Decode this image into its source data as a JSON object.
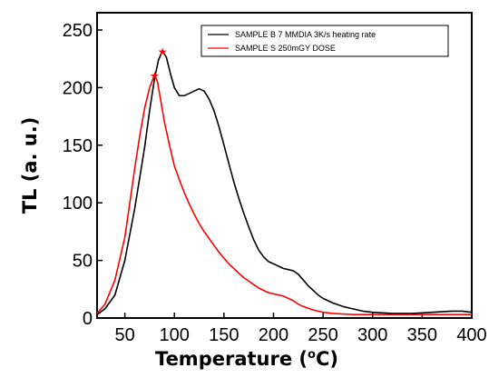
{
  "chart_data": {
    "type": "line",
    "xlabel_main": "Temperature (",
    "xlabel_sup": "o",
    "xlabel_unit": "C)",
    "ylabel": "TL (a. u.)",
    "xlim": [
      22,
      400
    ],
    "ylim": [
      0,
      265
    ],
    "x_ticks": [
      50,
      100,
      150,
      200,
      250,
      300,
      350,
      400
    ],
    "y_ticks": [
      0,
      50,
      100,
      150,
      200,
      250
    ],
    "x_tick_labels": [
      "50",
      "100",
      "150",
      "200",
      "250",
      "300",
      "350",
      "400"
    ],
    "y_tick_labels": [
      "0",
      "50",
      "100",
      "150",
      "200",
      "250"
    ],
    "legend_position": "top-right",
    "series": [
      {
        "name": "SAMPLE B 7 MMDIA 3K/s heating rate",
        "color": "#000000",
        "peak": [
          88,
          232
        ],
        "points": [
          [
            22,
            3
          ],
          [
            30,
            8
          ],
          [
            40,
            20
          ],
          [
            50,
            50
          ],
          [
            60,
            95
          ],
          [
            70,
            148
          ],
          [
            75,
            180
          ],
          [
            80,
            208
          ],
          [
            84,
            224
          ],
          [
            88,
            232
          ],
          [
            92,
            226
          ],
          [
            96,
            212
          ],
          [
            100,
            200
          ],
          [
            105,
            193
          ],
          [
            110,
            193
          ],
          [
            115,
            195
          ],
          [
            120,
            197
          ],
          [
            125,
            199
          ],
          [
            130,
            197
          ],
          [
            135,
            190
          ],
          [
            140,
            180
          ],
          [
            145,
            166
          ],
          [
            150,
            150
          ],
          [
            155,
            134
          ],
          [
            160,
            118
          ],
          [
            165,
            104
          ],
          [
            170,
            91
          ],
          [
            175,
            79
          ],
          [
            180,
            68
          ],
          [
            185,
            59
          ],
          [
            190,
            53
          ],
          [
            195,
            49
          ],
          [
            200,
            47
          ],
          [
            205,
            45
          ],
          [
            210,
            43
          ],
          [
            215,
            42
          ],
          [
            220,
            41
          ],
          [
            225,
            38
          ],
          [
            230,
            33
          ],
          [
            235,
            28
          ],
          [
            240,
            24
          ],
          [
            245,
            20
          ],
          [
            250,
            17
          ],
          [
            260,
            13
          ],
          [
            270,
            10
          ],
          [
            280,
            8
          ],
          [
            290,
            6
          ],
          [
            300,
            5
          ],
          [
            320,
            4
          ],
          [
            340,
            4
          ],
          [
            360,
            5
          ],
          [
            380,
            6
          ],
          [
            390,
            6
          ],
          [
            400,
            5
          ]
        ]
      },
      {
        "name": "SAMPLE S 250mGY DOSE",
        "color": "#ff0000",
        "peak": [
          80,
          211
        ],
        "points": [
          [
            22,
            4
          ],
          [
            30,
            12
          ],
          [
            40,
            33
          ],
          [
            50,
            70
          ],
          [
            55,
            100
          ],
          [
            60,
            130
          ],
          [
            65,
            158
          ],
          [
            70,
            182
          ],
          [
            75,
            200
          ],
          [
            80,
            211
          ],
          [
            83,
            205
          ],
          [
            86,
            190
          ],
          [
            90,
            170
          ],
          [
            95,
            150
          ],
          [
            100,
            132
          ],
          [
            105,
            120
          ],
          [
            110,
            109
          ],
          [
            115,
            99
          ],
          [
            120,
            90
          ],
          [
            125,
            82
          ],
          [
            130,
            75
          ],
          [
            135,
            69
          ],
          [
            140,
            63
          ],
          [
            145,
            57
          ],
          [
            150,
            52
          ],
          [
            155,
            47
          ],
          [
            160,
            43
          ],
          [
            165,
            39
          ],
          [
            170,
            35
          ],
          [
            175,
            32
          ],
          [
            180,
            29
          ],
          [
            185,
            26
          ],
          [
            190,
            24
          ],
          [
            195,
            22
          ],
          [
            200,
            21
          ],
          [
            205,
            20
          ],
          [
            210,
            19
          ],
          [
            215,
            17
          ],
          [
            220,
            15
          ],
          [
            225,
            12
          ],
          [
            230,
            10
          ],
          [
            240,
            7
          ],
          [
            250,
            5
          ],
          [
            260,
            4
          ],
          [
            280,
            3
          ],
          [
            300,
            3
          ],
          [
            320,
            3
          ],
          [
            340,
            3
          ],
          [
            360,
            3
          ],
          [
            380,
            3
          ],
          [
            400,
            3
          ]
        ]
      }
    ]
  }
}
